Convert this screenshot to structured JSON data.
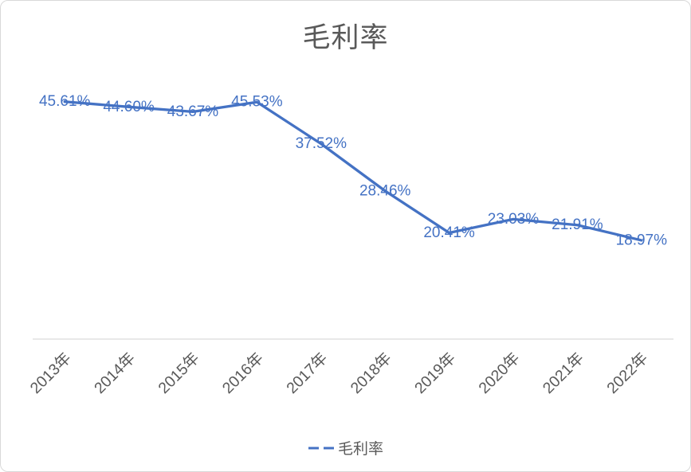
{
  "chart_data": {
    "type": "line",
    "title": "毛利率",
    "categories": [
      "2013年",
      "2014年",
      "2015年",
      "2016年",
      "2017年",
      "2018年",
      "2019年",
      "2020年",
      "2021年",
      "2022年"
    ],
    "series": [
      {
        "name": "毛利率",
        "values": [
          45.61,
          44.6,
          43.67,
          45.53,
          37.52,
          28.46,
          20.41,
          23.03,
          21.91,
          18.97
        ]
      }
    ],
    "data_labels": [
      "45.61%",
      "44.60%",
      "43.67%",
      "45.53%",
      "37.52%",
      "28.46%",
      "20.41%",
      "23.03%",
      "21.91%",
      "18.97%"
    ],
    "xlabel": "",
    "ylabel": "",
    "ylim": [
      0,
      50
    ],
    "grid": false,
    "legend_position": "bottom",
    "line_style": "dashed-legend-marker",
    "line_color": "#4472C4",
    "label_color": "#4472C4",
    "text_color": "#595959",
    "axis_line_color": "#d9d9d9"
  }
}
